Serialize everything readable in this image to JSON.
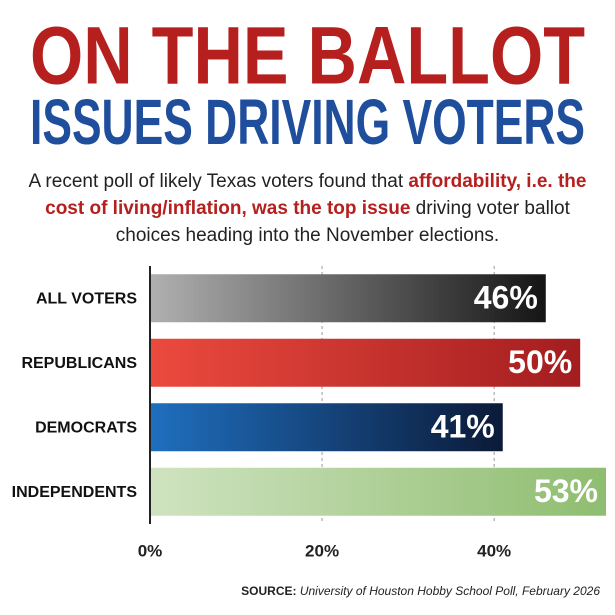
{
  "chart_data": {
    "type": "hbar",
    "title": "ON THE BALLOT",
    "subtitle": "ISSUES DRIVING VOTERS",
    "description": [
      "A recent poll of likely Texas voters found that ",
      "affordability, i.e. the cost of living/inflation, was the top issue",
      " driving voter ballot choices heading into the November elections."
    ],
    "categories": [
      "ALL VOTERS",
      "REPUBLICANS",
      "DEMOCRATS",
      "INDEPENDENTS"
    ],
    "values": [
      46,
      50,
      41,
      53
    ],
    "value_labels": [
      "46%",
      "50%",
      "41%",
      "53%"
    ],
    "bar_colors": [
      [
        "#b0b0b0",
        "#151515"
      ],
      [
        "#ec4a3e",
        "#a31d1f"
      ],
      [
        "#1f6fbf",
        "#0b1a38"
      ],
      [
        "#cfe3c0",
        "#8fbd70"
      ]
    ],
    "xlim": [
      0,
      53
    ],
    "xticks": [
      {
        "value": 0,
        "label": "0%"
      },
      {
        "value": 20,
        "label": "20%"
      },
      {
        "value": 40,
        "label": "40%"
      }
    ],
    "grid": true,
    "source_label": "SOURCE:",
    "source": "University of Houston Hobby School Poll, February 2026"
  }
}
